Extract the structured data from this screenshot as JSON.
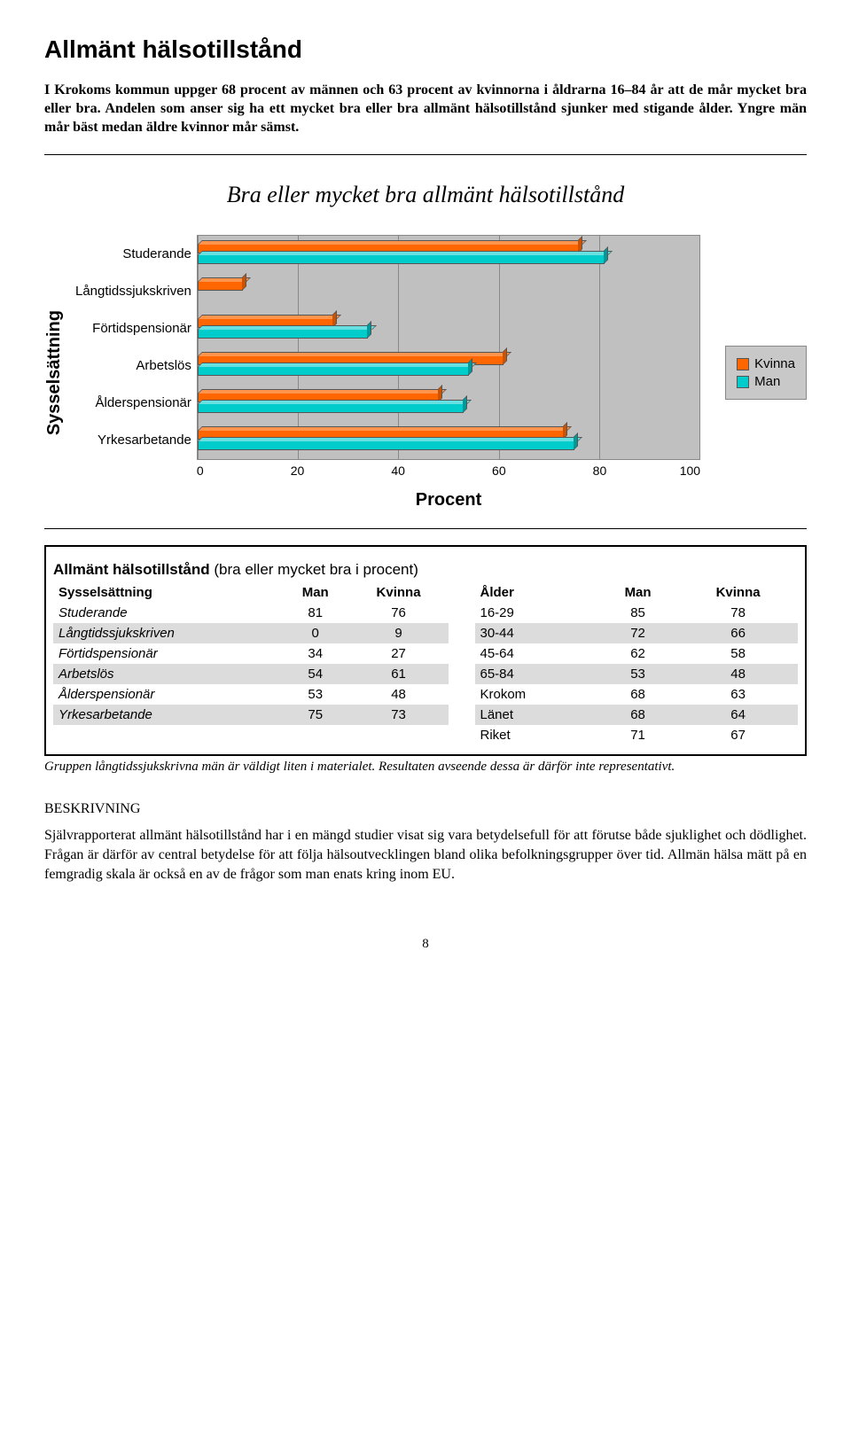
{
  "title": "Allmänt hälsotillstånd",
  "intro": "I Krokoms kommun uppger 68 procent av männen och 63 procent av kvinnorna i åldrarna 16–84 år att de mår mycket bra eller bra. Andelen som anser sig ha ett mycket bra eller bra allmänt hälsotillstånd sjunker med stigande ålder. Yngre män mår bäst medan äldre kvinnor mår sämst.",
  "chart": {
    "title": "Bra eller mycket bra allmänt hälsotillstånd",
    "ylabel": "Sysselsättning",
    "xlabel": "Procent",
    "xmax": 100,
    "xticks": [
      0,
      20,
      40,
      60,
      80,
      100
    ],
    "categories": [
      "Studerande",
      "Långtidssjukskriven",
      "Förtidspensionär",
      "Arbetslös",
      "Ålderspensionär",
      "Yrkesarbetande"
    ],
    "series": {
      "kvinna": {
        "label": "Kvinna",
        "color": "#ff6600",
        "color_top": "#ff944d",
        "color_side": "#cc5200",
        "values": [
          76,
          9,
          27,
          61,
          48,
          73
        ]
      },
      "man": {
        "label": "Man",
        "color": "#00cccc",
        "color_top": "#66e0e0",
        "color_side": "#009999",
        "values": [
          81,
          0,
          34,
          54,
          53,
          75
        ]
      }
    },
    "plot_bg": "#c0c0c0",
    "grid_color": "#888888"
  },
  "tables": {
    "title_bold": "Allmänt hälsotillstånd",
    "title_rest": " (bra eller mycket bra i procent)",
    "left": {
      "headers": [
        "Sysselsättning",
        "Man",
        "Kvinna"
      ],
      "rows": [
        {
          "label": "Studerande",
          "man": 81,
          "kv": 76,
          "shade": false
        },
        {
          "label": "Långtidssjukskriven",
          "man": 0,
          "kv": 9,
          "shade": true
        },
        {
          "label": "Förtidspensionär",
          "man": 34,
          "kv": 27,
          "shade": false
        },
        {
          "label": "Arbetslös",
          "man": 54,
          "kv": 61,
          "shade": true
        },
        {
          "label": "Ålderspensionär",
          "man": 53,
          "kv": 48,
          "shade": false
        },
        {
          "label": "Yrkesarbetande",
          "man": 75,
          "kv": 73,
          "shade": true
        }
      ]
    },
    "right": {
      "headers": [
        "Ålder",
        "Man",
        "Kvinna"
      ],
      "rows": [
        {
          "label": "16-29",
          "man": 85,
          "kv": 78,
          "shade": false
        },
        {
          "label": "30-44",
          "man": 72,
          "kv": 66,
          "shade": true
        },
        {
          "label": "45-64",
          "man": 62,
          "kv": 58,
          "shade": false
        },
        {
          "label": "65-84",
          "man": 53,
          "kv": 48,
          "shade": true
        },
        {
          "label": "Krokom",
          "man": 68,
          "kv": 63,
          "shade": false
        },
        {
          "label": "Länet",
          "man": 68,
          "kv": 64,
          "shade": true
        },
        {
          "label": "Riket",
          "man": 71,
          "kv": 67,
          "shade": false
        }
      ]
    },
    "footnote": "Gruppen långtidssjukskrivna män är väldigt liten i materialet. Resultaten avseende dessa är därför inte representativt."
  },
  "beskrivning": {
    "heading": "BESKRIVNING",
    "text": "Självrapporterat allmänt hälsotillstånd har i en mängd studier visat sig vara betydelsefull för att förutse både sjuklighet och dödlighet. Frågan är därför av central betydelse för att följa hälsoutvecklingen bland olika befolkningsgrupper över tid. Allmän hälsa mätt på en femgradig skala är också en av de frågor som man enats kring inom EU."
  },
  "pagenum": "8"
}
